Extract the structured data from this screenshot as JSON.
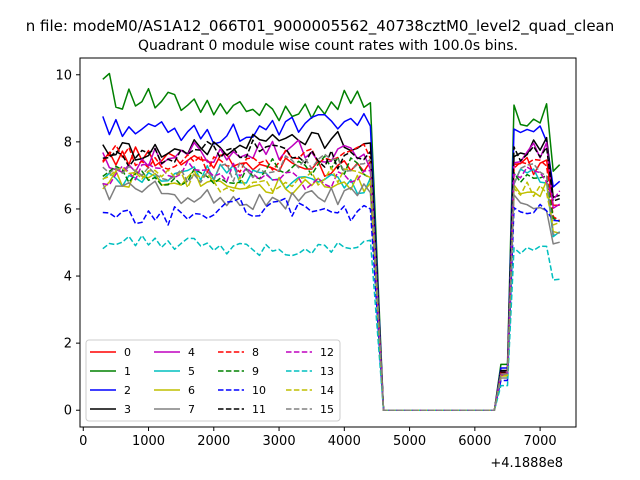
{
  "chart_data": {
    "type": "line",
    "suptitle": "n file: modeM0/AS1A12_066T01_9000005562_40738cztM0_level2_quad_clean",
    "title": "Quadrant 0 module wise count rates with 100.0s bins.",
    "xlabel": "",
    "ylabel": "",
    "x_offset_label": "+4.1888e8",
    "xlim": [
      -50,
      7550
    ],
    "ylim": [
      -0.5,
      10.5
    ],
    "xticks": [
      0,
      1000,
      2000,
      3000,
      4000,
      5000,
      6000,
      7000
    ],
    "yticks": [
      0,
      2,
      4,
      6,
      8,
      10
    ],
    "grid": false,
    "legend_position": "lower-left",
    "legend_columns": 4,
    "segments": [
      {
        "start": 300,
        "end": 4400,
        "step": 100
      },
      {
        "start": 4600,
        "end": 6300,
        "step": 100
      },
      {
        "start": 6400,
        "end": 7300,
        "step": 100
      }
    ],
    "series": [
      {
        "name": "0",
        "color": "#ff0000",
        "dash": "solid",
        "level": 7.4,
        "amp": 0.3,
        "end": 6.2
      },
      {
        "name": "1",
        "color": "#008000",
        "dash": "solid",
        "level": 9.1,
        "amp": 0.35,
        "end": 7.2
      },
      {
        "name": "2",
        "color": "#0000ff",
        "dash": "solid",
        "level": 8.4,
        "amp": 0.3,
        "end": 6.8
      },
      {
        "name": "3",
        "color": "#000000",
        "dash": "solid",
        "level": 7.9,
        "amp": 0.3,
        "end": 6.4
      },
      {
        "name": "4",
        "color": "#bf00bf",
        "dash": "solid",
        "level": 7.6,
        "amp": 0.35,
        "end": 6.0
      },
      {
        "name": "5",
        "color": "#00bfbf",
        "dash": "solid",
        "level": 6.9,
        "amp": 0.3,
        "end": 5.2
      },
      {
        "name": "6",
        "color": "#bfbf00",
        "dash": "solid",
        "level": 6.8,
        "amp": 0.3,
        "end": 5.4
      },
      {
        "name": "7",
        "color": "#808080",
        "dash": "solid",
        "level": 6.4,
        "amp": 0.3,
        "end": 5.0
      },
      {
        "name": "8",
        "color": "#ff0000",
        "dash": "dashed",
        "level": 7.5,
        "amp": 0.3,
        "end": 5.8
      },
      {
        "name": "9",
        "color": "#008000",
        "dash": "dashed",
        "level": 7.1,
        "amp": 0.3,
        "end": 5.6
      },
      {
        "name": "10",
        "color": "#0000ff",
        "dash": "dashed",
        "level": 5.9,
        "amp": 0.3,
        "end": 5.6
      },
      {
        "name": "11",
        "color": "#000000",
        "dash": "dashed",
        "level": 7.6,
        "amp": 0.3,
        "end": 6.3
      },
      {
        "name": "12",
        "color": "#bf00bf",
        "dash": "dashed",
        "level": 7.0,
        "amp": 0.3,
        "end": 6.4
      },
      {
        "name": "13",
        "color": "#00bfbf",
        "dash": "dashed",
        "level": 4.9,
        "amp": 0.2,
        "end": 3.9
      },
      {
        "name": "14",
        "color": "#bfbf00",
        "dash": "dashed",
        "level": 6.9,
        "amp": 0.3,
        "end": 5.5
      },
      {
        "name": "15",
        "color": "#808080",
        "dash": "dashed",
        "level": 7.2,
        "amp": 0.3,
        "end": 5.3
      }
    ]
  }
}
